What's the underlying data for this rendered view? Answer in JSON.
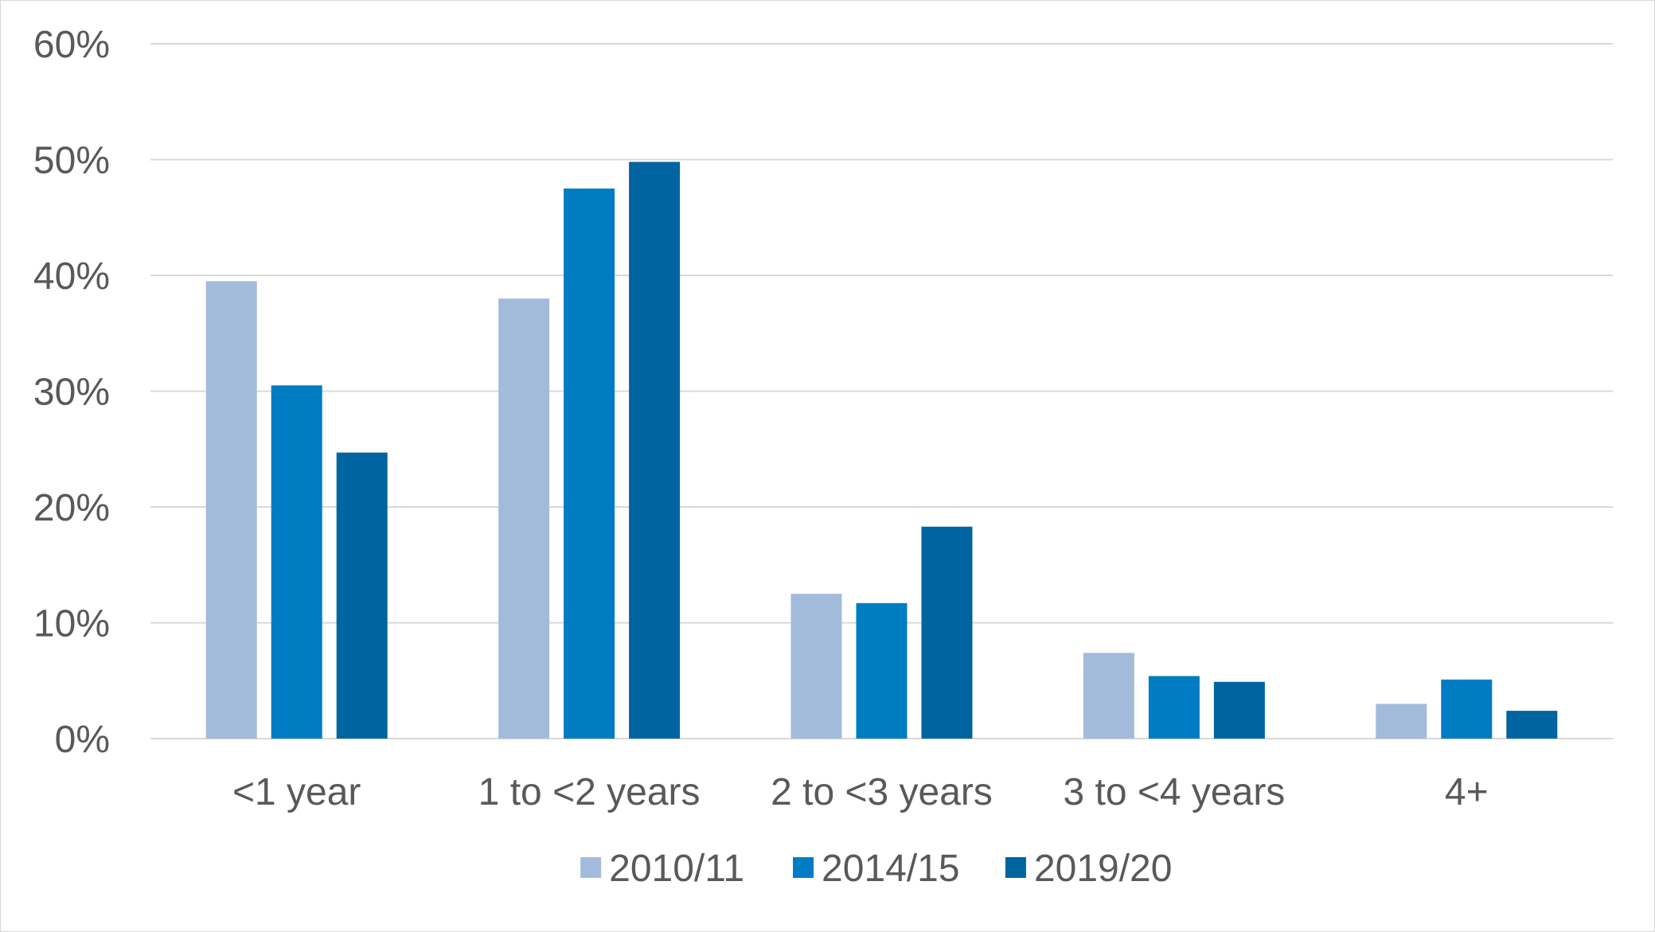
{
  "chart_data": {
    "type": "bar",
    "title": "",
    "xlabel": "",
    "ylabel": "",
    "categories": [
      "<1 year",
      "1 to <2 years",
      "2 to <3 years",
      "3 to <4 years",
      "4+"
    ],
    "series": [
      {
        "name": "2010/11",
        "color": "#a3bbdb",
        "values": [
          39.5,
          38.0,
          12.5,
          7.4,
          3.0
        ]
      },
      {
        "name": "2014/15",
        "color": "#007cc3",
        "values": [
          30.5,
          47.5,
          11.7,
          5.4,
          5.1
        ]
      },
      {
        "name": "2019/20",
        "color": "#0064a0",
        "values": [
          24.7,
          49.8,
          18.3,
          4.9,
          2.4
        ]
      }
    ],
    "ylim": [
      0,
      60
    ],
    "yticks": [
      0,
      10,
      20,
      30,
      40,
      50,
      60
    ],
    "ytick_suffix": "%",
    "grid": true,
    "legend_position": "bottom"
  }
}
